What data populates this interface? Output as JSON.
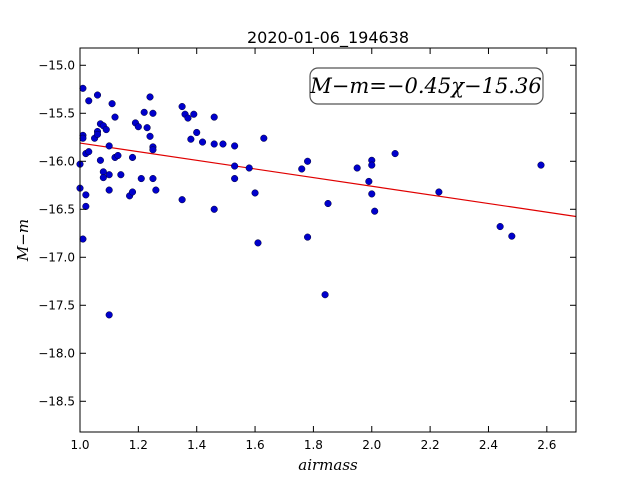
{
  "chart_data": {
    "type": "scatter",
    "title": "2020-01-06_194638",
    "xlabel": "airmass",
    "ylabel": "M−m",
    "xlim": [
      1.0,
      2.7
    ],
    "ylim": [
      -18.82,
      -14.82
    ],
    "x_ticks": [
      1.0,
      1.2,
      1.4,
      1.6,
      1.8,
      2.0,
      2.2,
      2.4,
      2.6
    ],
    "x_tick_labels": [
      "1.0",
      "1.2",
      "1.4",
      "1.6",
      "1.8",
      "2.0",
      "2.2",
      "2.4",
      "2.6"
    ],
    "y_ticks": [
      -15.0,
      -15.5,
      -16.0,
      -16.5,
      -17.0,
      -17.5,
      -18.0,
      -18.5
    ],
    "y_tick_labels": [
      "−15.0",
      "−15.5",
      "−16.0",
      "−16.5",
      "−17.0",
      "−17.5",
      "−18.0",
      "−18.5"
    ],
    "grid": false,
    "annotation": "M−m=−0.45χ−15.36",
    "fit": {
      "slope": -0.45,
      "intercept": -15.36,
      "color": "#e00000"
    },
    "point_color": "#0000cc",
    "points": [
      [
        1.01,
        -15.24
      ],
      [
        1.01,
        -15.73
      ],
      [
        1.01,
        -15.76
      ],
      [
        1.0,
        -16.03
      ],
      [
        1.02,
        -15.92
      ],
      [
        1.0,
        -16.28
      ],
      [
        1.02,
        -16.35
      ],
      [
        1.02,
        -16.47
      ],
      [
        1.01,
        -16.81
      ],
      [
        1.03,
        -15.37
      ],
      [
        1.03,
        -15.9
      ],
      [
        1.06,
        -15.31
      ],
      [
        1.05,
        -15.76
      ],
      [
        1.06,
        -15.69
      ],
      [
        1.06,
        -15.72
      ],
      [
        1.07,
        -15.61
      ],
      [
        1.08,
        -15.63
      ],
      [
        1.09,
        -15.67
      ],
      [
        1.07,
        -15.99
      ],
      [
        1.08,
        -16.11
      ],
      [
        1.08,
        -16.17
      ],
      [
        1.1,
        -15.84
      ],
      [
        1.1,
        -16.14
      ],
      [
        1.1,
        -16.3
      ],
      [
        1.11,
        -15.4
      ],
      [
        1.12,
        -15.54
      ],
      [
        1.12,
        -15.96
      ],
      [
        1.13,
        -15.94
      ],
      [
        1.14,
        -16.14
      ],
      [
        1.1,
        -17.6
      ],
      [
        1.17,
        -16.36
      ],
      [
        1.18,
        -16.32
      ],
      [
        1.18,
        -15.96
      ],
      [
        1.19,
        -15.6
      ],
      [
        1.2,
        -15.64
      ],
      [
        1.21,
        -16.18
      ],
      [
        1.22,
        -15.49
      ],
      [
        1.23,
        -15.65
      ],
      [
        1.24,
        -15.33
      ],
      [
        1.24,
        -15.74
      ],
      [
        1.25,
        -15.5
      ],
      [
        1.25,
        -15.85
      ],
      [
        1.25,
        -15.88
      ],
      [
        1.25,
        -16.18
      ],
      [
        1.26,
        -16.3
      ],
      [
        1.35,
        -15.43
      ],
      [
        1.36,
        -15.51
      ],
      [
        1.37,
        -15.55
      ],
      [
        1.39,
        -15.51
      ],
      [
        1.38,
        -15.77
      ],
      [
        1.4,
        -15.7
      ],
      [
        1.42,
        -15.8
      ],
      [
        1.35,
        -16.4
      ],
      [
        1.46,
        -15.54
      ],
      [
        1.46,
        -15.82
      ],
      [
        1.49,
        -15.82
      ],
      [
        1.53,
        -15.84
      ],
      [
        1.53,
        -16.05
      ],
      [
        1.53,
        -16.18
      ],
      [
        1.46,
        -16.5
      ],
      [
        1.58,
        -16.07
      ],
      [
        1.6,
        -16.33
      ],
      [
        1.61,
        -16.85
      ],
      [
        1.63,
        -15.76
      ],
      [
        1.76,
        -16.08
      ],
      [
        1.78,
        -16.0
      ],
      [
        1.78,
        -16.79
      ],
      [
        1.85,
        -16.44
      ],
      [
        1.84,
        -17.39
      ],
      [
        1.95,
        -16.07
      ],
      [
        1.99,
        -16.21
      ],
      [
        2.0,
        -15.99
      ],
      [
        2.0,
        -16.04
      ],
      [
        2.0,
        -16.34
      ],
      [
        2.01,
        -16.52
      ],
      [
        2.08,
        -15.92
      ],
      [
        2.23,
        -16.32
      ],
      [
        2.44,
        -16.68
      ],
      [
        2.48,
        -16.78
      ],
      [
        2.58,
        -16.04
      ]
    ]
  }
}
